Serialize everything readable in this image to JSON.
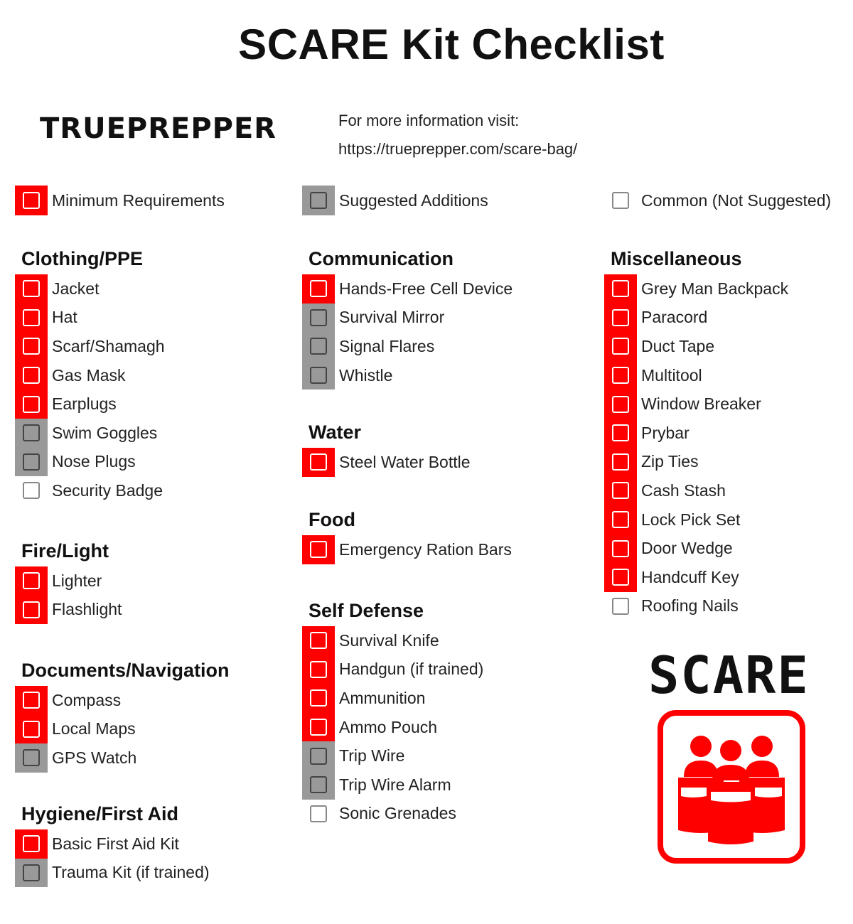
{
  "title": "SCARE Kit Checklist",
  "brand": "TRUEPREPPER",
  "info": {
    "line1": "For more information visit:",
    "url": "https://trueprepper.com/scare-bag/"
  },
  "colors": {
    "minimum": "#ff0000",
    "suggested": "#999999",
    "common": "#ffffff"
  },
  "legend": [
    {
      "status": "min",
      "label": "Minimum Requirements"
    },
    {
      "status": "sug",
      "label": "Suggested Additions"
    },
    {
      "status": "common",
      "label": "Common (Not Suggested)"
    }
  ],
  "sections": [
    {
      "title": "Clothing/PPE",
      "items": [
        {
          "label": "Jacket",
          "status": "min"
        },
        {
          "label": "Hat",
          "status": "min"
        },
        {
          "label": "Scarf/Shamagh",
          "status": "min"
        },
        {
          "label": "Gas Mask",
          "status": "min"
        },
        {
          "label": "Earplugs",
          "status": "min"
        },
        {
          "label": "Swim Goggles",
          "status": "sug"
        },
        {
          "label": "Nose Plugs",
          "status": "sug"
        },
        {
          "label": "Security Badge",
          "status": "common"
        }
      ]
    },
    {
      "title": "Fire/Light",
      "items": [
        {
          "label": "Lighter",
          "status": "min"
        },
        {
          "label": "Flashlight",
          "status": "min"
        }
      ]
    },
    {
      "title": "Documents/Navigation",
      "items": [
        {
          "label": "Compass",
          "status": "min"
        },
        {
          "label": "Local Maps",
          "status": "min"
        },
        {
          "label": "GPS Watch",
          "status": "sug"
        }
      ]
    },
    {
      "title": "Hygiene/First Aid",
      "items": [
        {
          "label": "Basic First Aid Kit",
          "status": "min"
        },
        {
          "label": "Trauma Kit (if trained)",
          "status": "sug"
        }
      ]
    },
    {
      "title": "Communication",
      "items": [
        {
          "label": "Hands-Free Cell Device",
          "status": "min"
        },
        {
          "label": "Survival Mirror",
          "status": "sug"
        },
        {
          "label": "Signal Flares",
          "status": "sug"
        },
        {
          "label": "Whistle",
          "status": "sug"
        }
      ]
    },
    {
      "title": "Water",
      "items": [
        {
          "label": "Steel Water Bottle",
          "status": "min"
        }
      ]
    },
    {
      "title": "Food",
      "items": [
        {
          "label": "Emergency Ration Bars",
          "status": "min"
        }
      ]
    },
    {
      "title": "Self Defense",
      "items": [
        {
          "label": "Survival Knife",
          "status": "min"
        },
        {
          "label": "Handgun (if trained)",
          "status": "min"
        },
        {
          "label": "Ammunition",
          "status": "min"
        },
        {
          "label": "Ammo Pouch",
          "status": "min"
        },
        {
          "label": "Trip Wire",
          "status": "sug"
        },
        {
          "label": "Trip Wire Alarm",
          "status": "sug"
        },
        {
          "label": "Sonic Grenades",
          "status": "common"
        }
      ]
    },
    {
      "title": "Miscellaneous",
      "items": [
        {
          "label": "Grey Man Backpack",
          "status": "min"
        },
        {
          "label": "Paracord",
          "status": "min"
        },
        {
          "label": "Duct Tape",
          "status": "min"
        },
        {
          "label": "Multitool",
          "status": "min"
        },
        {
          "label": "Window Breaker",
          "status": "min"
        },
        {
          "label": "Prybar",
          "status": "min"
        },
        {
          "label": "Zip Ties",
          "status": "min"
        },
        {
          "label": "Cash Stash",
          "status": "min"
        },
        {
          "label": "Lock Pick Set",
          "status": "min"
        },
        {
          "label": "Door Wedge",
          "status": "min"
        },
        {
          "label": "Handcuff Key",
          "status": "min"
        },
        {
          "label": "Roofing Nails",
          "status": "common"
        }
      ]
    }
  ],
  "logo": {
    "text": "SCARE",
    "icon": "group-of-people-with-shields-icon"
  }
}
